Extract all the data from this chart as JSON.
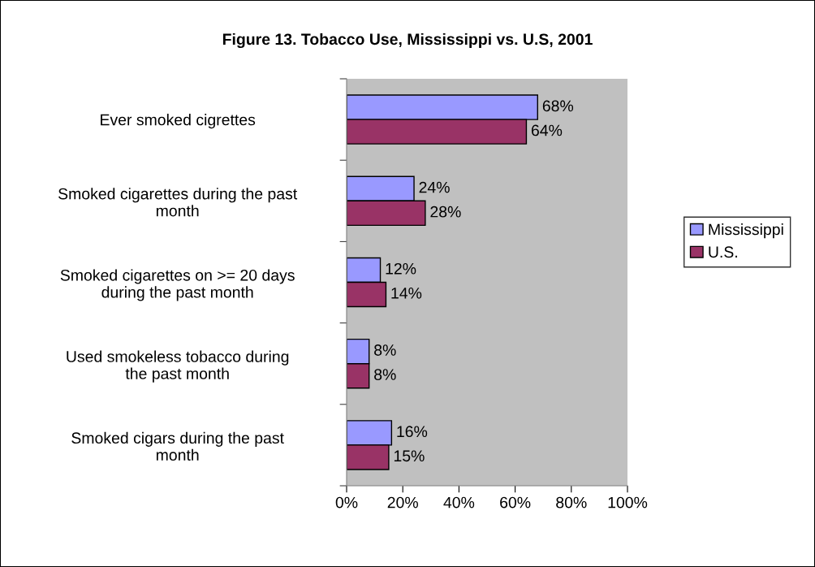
{
  "chart_data": {
    "type": "bar",
    "orientation": "horizontal",
    "title": "Figure 13. Tobacco Use, Mississippi vs. U.S, 2001",
    "categories": [
      "Ever smoked cigrettes",
      "Smoked cigarettes during the past\nmonth",
      "Smoked cigarettes on >= 20 days\nduring the past month",
      "Used smokeless tobacco during\nthe past month",
      "Smoked cigars during the past\nmonth"
    ],
    "series": [
      {
        "name": "Mississippi",
        "color": "#9999ff",
        "values": [
          68,
          24,
          12,
          8,
          16
        ],
        "value_labels": [
          "68%",
          "24%",
          "12%",
          "8%",
          "16%"
        ]
      },
      {
        "name": "U.S.",
        "color": "#993366",
        "values": [
          64,
          28,
          14,
          8,
          15
        ],
        "value_labels": [
          "64%",
          "28%",
          "14%",
          "8%",
          "15%"
        ]
      }
    ],
    "xlim": [
      0,
      100
    ],
    "xticks": [
      {
        "value": 0,
        "label": "0%"
      },
      {
        "value": 20,
        "label": "20%"
      },
      {
        "value": 40,
        "label": "40%"
      },
      {
        "value": 60,
        "label": "60%"
      },
      {
        "value": 80,
        "label": "80%"
      },
      {
        "value": 100,
        "label": "100%"
      }
    ],
    "grid": false,
    "legend": "right"
  }
}
